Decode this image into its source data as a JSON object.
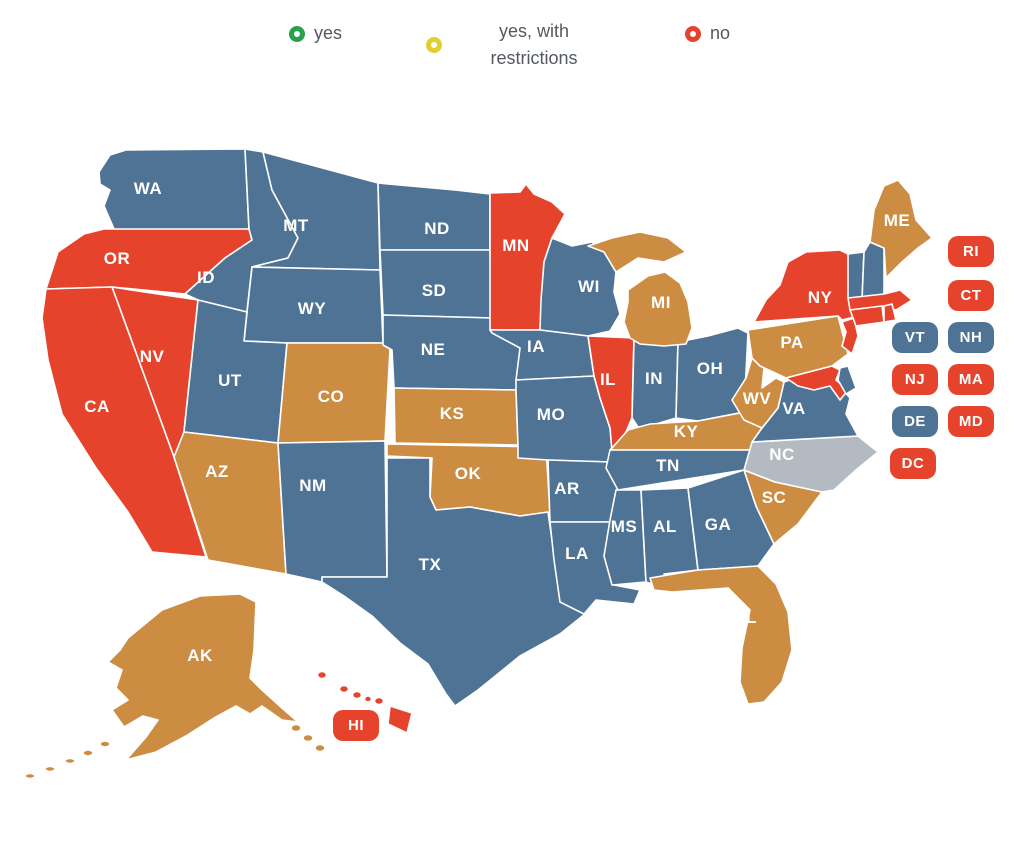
{
  "legend": {
    "text_color": "#54595f",
    "items": [
      {
        "label": "yes",
        "dot_color": "#27a14b"
      },
      {
        "label": "yes, with restrictions",
        "dot_color": "#e0d02f"
      },
      {
        "label": "no",
        "dot_color": "#e6432d"
      }
    ]
  },
  "status_colors": {
    "yes": "#4e7394",
    "yes_with_restrictions": "#cc8c42",
    "no": "#e6432d",
    "no_data": "#b3bac1"
  },
  "states": [
    {
      "abbr": "WA",
      "status": "yes"
    },
    {
      "abbr": "OR",
      "status": "no"
    },
    {
      "abbr": "CA",
      "status": "no"
    },
    {
      "abbr": "NV",
      "status": "no"
    },
    {
      "abbr": "ID",
      "status": "yes"
    },
    {
      "abbr": "MT",
      "status": "yes"
    },
    {
      "abbr": "WY",
      "status": "yes"
    },
    {
      "abbr": "UT",
      "status": "yes"
    },
    {
      "abbr": "AZ",
      "status": "yes_with_restrictions"
    },
    {
      "abbr": "CO",
      "status": "yes_with_restrictions"
    },
    {
      "abbr": "NM",
      "status": "yes"
    },
    {
      "abbr": "ND",
      "status": "yes"
    },
    {
      "abbr": "SD",
      "status": "yes"
    },
    {
      "abbr": "NE",
      "status": "yes"
    },
    {
      "abbr": "KS",
      "status": "yes_with_restrictions"
    },
    {
      "abbr": "OK",
      "status": "yes_with_restrictions"
    },
    {
      "abbr": "TX",
      "status": "yes"
    },
    {
      "abbr": "MN",
      "status": "no"
    },
    {
      "abbr": "IA",
      "status": "yes"
    },
    {
      "abbr": "MO",
      "status": "yes"
    },
    {
      "abbr": "AR",
      "status": "yes"
    },
    {
      "abbr": "LA",
      "status": "yes"
    },
    {
      "abbr": "WI",
      "status": "yes"
    },
    {
      "abbr": "IL",
      "status": "no"
    },
    {
      "abbr": "MI",
      "status": "yes_with_restrictions"
    },
    {
      "abbr": "IN",
      "status": "yes"
    },
    {
      "abbr": "OH",
      "status": "yes"
    },
    {
      "abbr": "KY",
      "status": "yes_with_restrictions"
    },
    {
      "abbr": "TN",
      "status": "yes"
    },
    {
      "abbr": "WV",
      "status": "yes_with_restrictions"
    },
    {
      "abbr": "VA",
      "status": "yes"
    },
    {
      "abbr": "NC",
      "status": "no_data"
    },
    {
      "abbr": "SC",
      "status": "yes_with_restrictions"
    },
    {
      "abbr": "GA",
      "status": "yes"
    },
    {
      "abbr": "AL",
      "status": "yes"
    },
    {
      "abbr": "MS",
      "status": "yes"
    },
    {
      "abbr": "FL",
      "status": "yes_with_restrictions"
    },
    {
      "abbr": "PA",
      "status": "yes_with_restrictions"
    },
    {
      "abbr": "NY",
      "status": "no"
    },
    {
      "abbr": "ME",
      "status": "yes_with_restrictions"
    },
    {
      "abbr": "VT",
      "status": "yes"
    },
    {
      "abbr": "NH",
      "status": "yes"
    },
    {
      "abbr": "RI",
      "status": "no"
    },
    {
      "abbr": "CT",
      "status": "no"
    },
    {
      "abbr": "NJ",
      "status": "no"
    },
    {
      "abbr": "MA",
      "status": "no"
    },
    {
      "abbr": "DE",
      "status": "yes"
    },
    {
      "abbr": "MD",
      "status": "no"
    },
    {
      "abbr": "DC",
      "status": "no"
    },
    {
      "abbr": "AK",
      "status": "yes_with_restrictions"
    },
    {
      "abbr": "HI",
      "status": "no"
    }
  ],
  "badges": [
    "RI",
    "CT",
    "VT",
    "NH",
    "NJ",
    "MA",
    "DE",
    "MD",
    "DC",
    "HI"
  ]
}
